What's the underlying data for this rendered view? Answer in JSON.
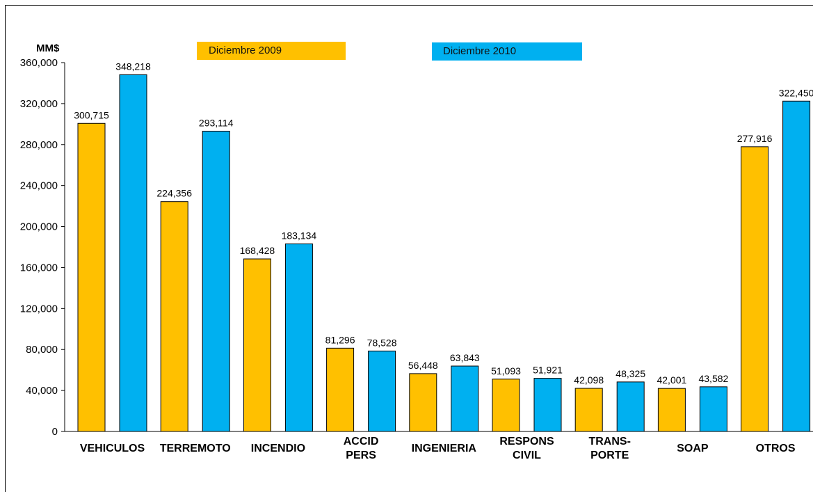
{
  "chart_data": {
    "type": "bar",
    "ylabel": "MM$",
    "ylim": [
      0,
      360000
    ],
    "yticks": [
      "0",
      "40,000",
      "80,000",
      "120,000",
      "160,000",
      "200,000",
      "240,000",
      "280,000",
      "320,000",
      "360,000"
    ],
    "categories": [
      [
        "VEHICULOS"
      ],
      [
        "TERREMOTO"
      ],
      [
        "INCENDIO"
      ],
      [
        "ACCID",
        "PERS"
      ],
      [
        "INGENIERIA"
      ],
      [
        "RESPONS",
        "CIVIL"
      ],
      [
        "TRANS-",
        "PORTE"
      ],
      [
        "SOAP"
      ],
      [
        "OTROS"
      ]
    ],
    "series": [
      {
        "name": "Diciembre 2009",
        "color": "#FFC000",
        "values": [
          300715,
          224356,
          168428,
          81296,
          56448,
          51093,
          42098,
          42001,
          277916
        ],
        "labels": [
          "300,715",
          "224,356",
          "168,428",
          "81,296",
          "56,448",
          "51,093",
          "42,098",
          "42,001",
          "277,916"
        ]
      },
      {
        "name": "Diciembre 2010",
        "color": "#00B0F0",
        "values": [
          348218,
          293114,
          183134,
          78528,
          63843,
          51921,
          48325,
          43582,
          322450
        ],
        "labels": [
          "348,218",
          "293,114",
          "183,134",
          "78,528",
          "63,843",
          "51,921",
          "48,325",
          "43,582",
          "322,450"
        ]
      }
    ],
    "grid": false,
    "legend": "top"
  }
}
